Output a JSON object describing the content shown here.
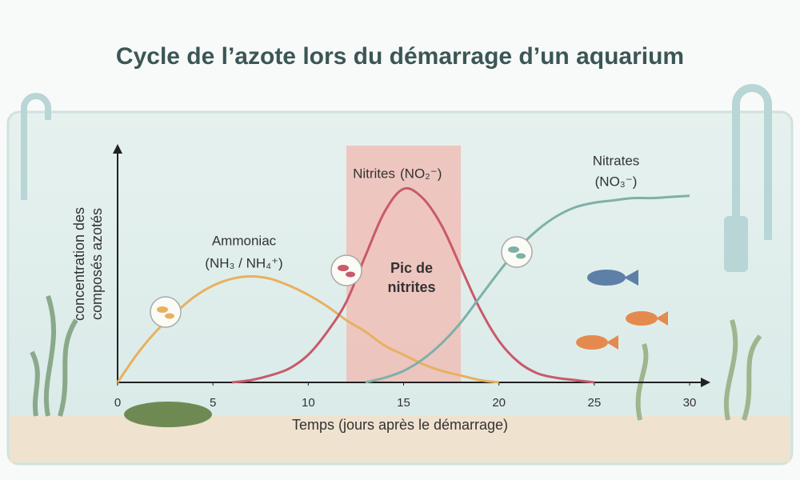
{
  "chart_data": {
    "type": "line",
    "title": "Cycle de l’azote lors du démarrage d’un aquarium",
    "x_label": "Temps (jours après le démarrage)",
    "y_label": [
      "concentration des",
      "composés  azotés"
    ],
    "x": [
      0,
      1,
      2,
      3,
      4,
      5,
      6,
      7,
      8,
      9,
      10,
      11,
      12,
      13,
      14,
      15,
      16,
      17,
      18,
      19,
      20,
      21,
      22,
      23,
      24,
      25,
      26,
      27,
      28,
      29,
      30
    ],
    "xlim": [
      0,
      30
    ],
    "xticks": [
      0,
      5,
      10,
      15,
      20,
      25,
      30
    ],
    "ylim": [
      0,
      100
    ],
    "grid": false,
    "highlight": {
      "range": [
        12,
        18
      ],
      "label": [
        "Pic de",
        "nitrites"
      ],
      "color": "#f2b8b0"
    },
    "series": [
      {
        "name": "Ammoniac",
        "formula": "(NH₃ / NH₄⁺)",
        "color": "#e8b060",
        "values": [
          0,
          12,
          22,
          30,
          37,
          42,
          45,
          46,
          45,
          42,
          38,
          33,
          27,
          22,
          16,
          12,
          8,
          5,
          3,
          1,
          0,
          null,
          null,
          null,
          null,
          null,
          null,
          null,
          null,
          null,
          null
        ]
      },
      {
        "name": "Nitrites",
        "formula": "(NO₂⁻)",
        "color": "#c85a6a",
        "values": [
          null,
          null,
          null,
          null,
          null,
          null,
          0,
          1,
          3,
          6,
          12,
          22,
          35,
          55,
          74,
          84,
          80,
          68,
          50,
          32,
          18,
          9,
          4,
          2,
          1,
          0,
          null,
          null,
          null,
          null,
          null
        ]
      },
      {
        "name": "Nitrates",
        "formula": "(NO₃⁻)",
        "color": "#7fb0a8",
        "values": [
          null,
          null,
          null,
          null,
          null,
          null,
          null,
          null,
          null,
          null,
          null,
          null,
          null,
          0,
          2,
          5,
          10,
          17,
          26,
          37,
          48,
          58,
          66,
          72,
          76,
          78,
          79,
          80,
          80,
          80.5,
          81
        ]
      }
    ]
  }
}
